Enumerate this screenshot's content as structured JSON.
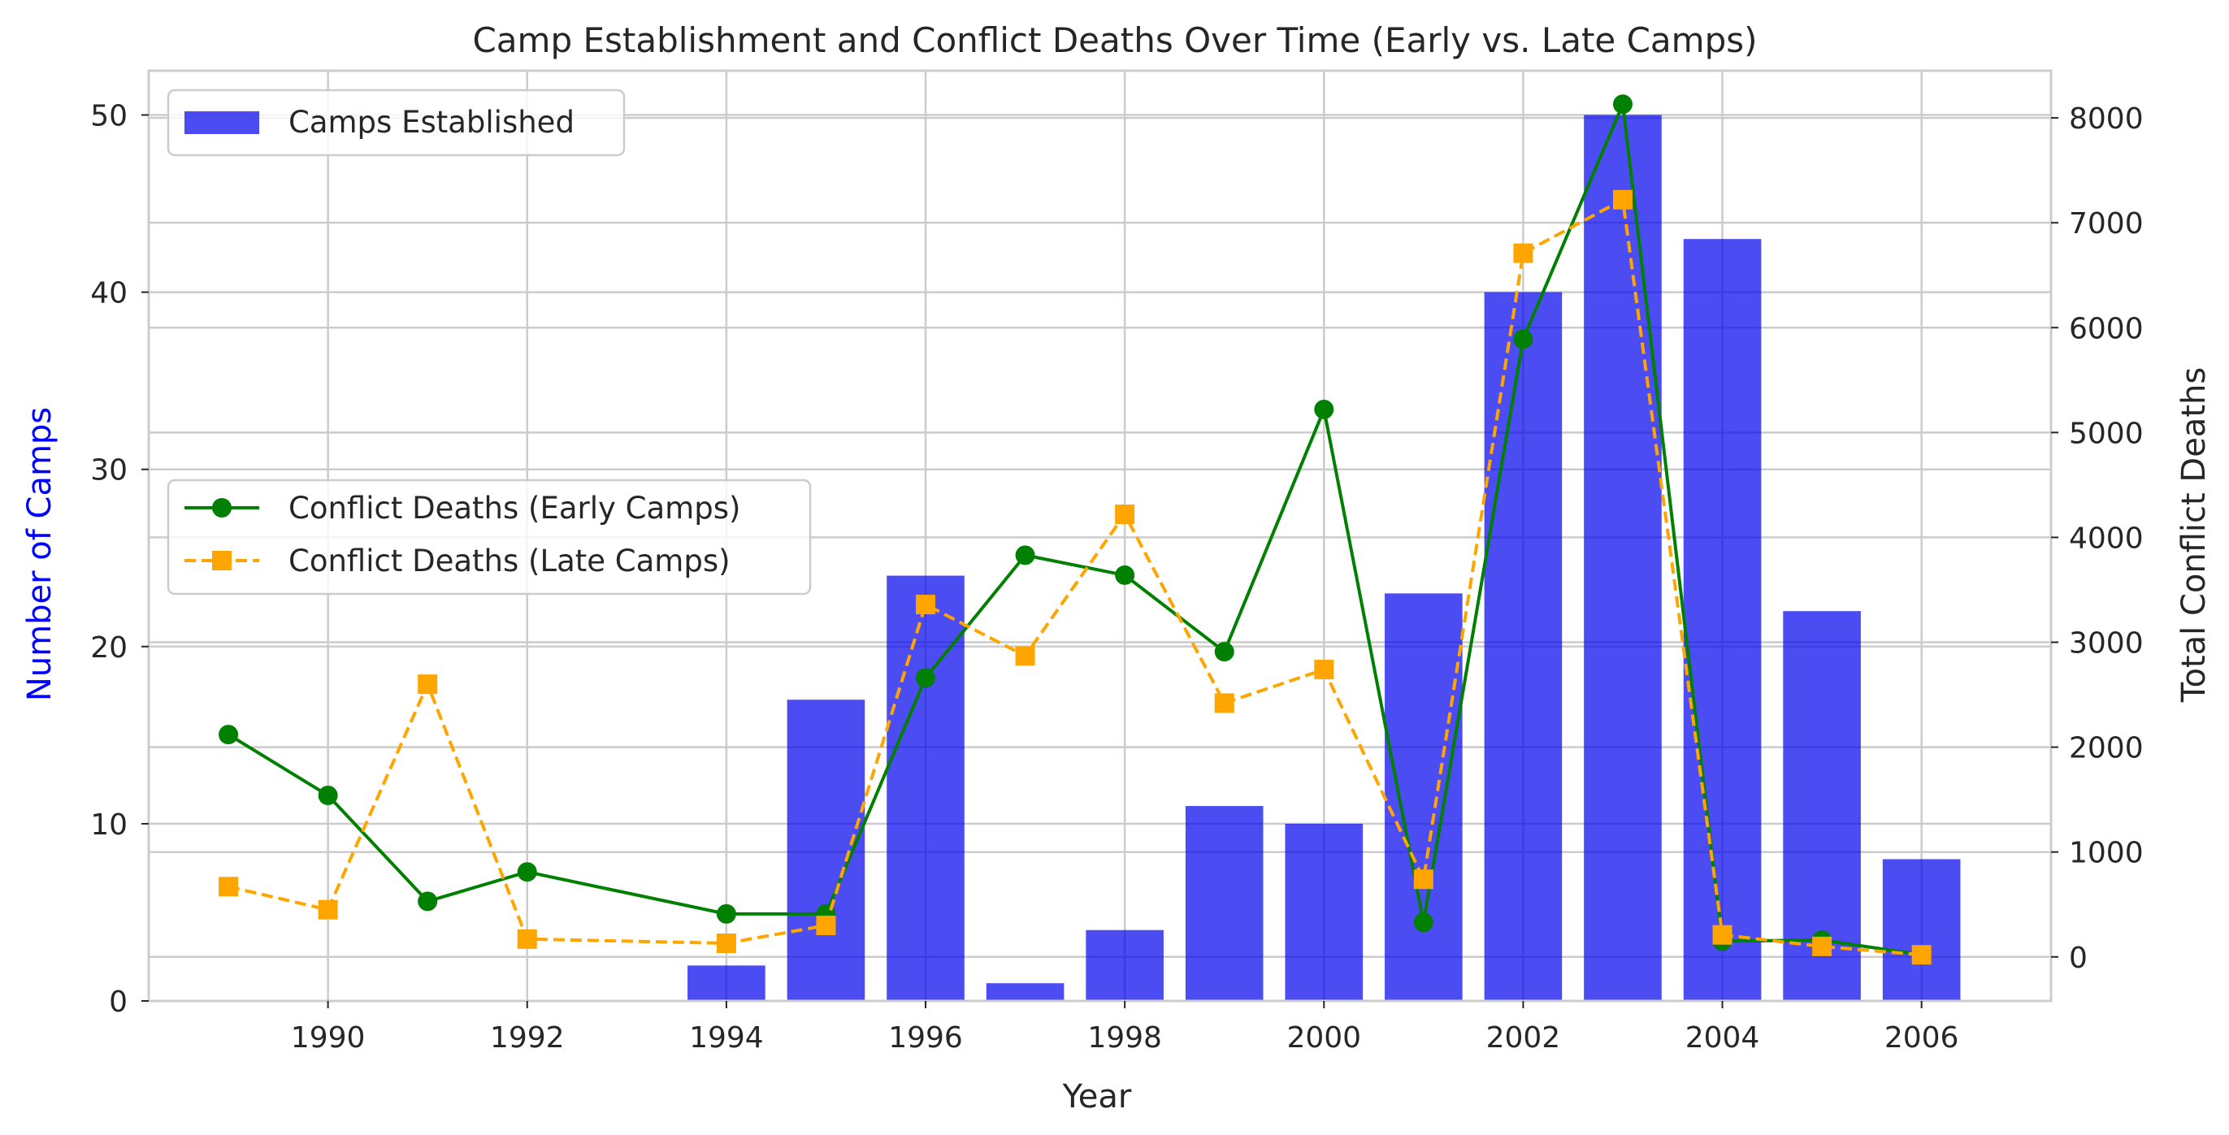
{
  "chart_data": {
    "type": "bar+line",
    "title": "Camp Establishment and Conflict Deaths Over Time (Early vs. Late Camps)",
    "xlabel": "Year",
    "ylabel_left": "Number of Camps",
    "ylabel_right": "Total Conflict Deaths",
    "xlim": [
      1988.2,
      2007.3
    ],
    "ylim_left": [
      0,
      52.5
    ],
    "ylim_right": [
      -420,
      8450
    ],
    "x_ticks": [
      1990,
      1992,
      1994,
      1996,
      1998,
      2000,
      2002,
      2004,
      2006
    ],
    "y_left_ticks": [
      0,
      10,
      20,
      30,
      40,
      50
    ],
    "y_right_ticks": [
      0,
      1000,
      2000,
      3000,
      4000,
      5000,
      6000,
      7000,
      8000
    ],
    "grid": true,
    "bars": {
      "name": "Camps Established",
      "color": "#0000ee",
      "x": [
        1994,
        1995,
        1996,
        1997,
        1998,
        1999,
        2000,
        2001,
        2002,
        2003,
        2004,
        2005,
        2006
      ],
      "values": [
        2,
        17,
        24,
        1,
        4,
        11,
        10,
        23,
        40,
        50,
        43,
        22,
        8
      ]
    },
    "series": [
      {
        "name": "Conflict Deaths (Early Camps)",
        "color": "#008000",
        "marker": "circle",
        "style": "solid",
        "x": [
          1989,
          1990,
          1991,
          1992,
          1994,
          1995,
          1996,
          1997,
          1998,
          1999,
          2000,
          2001,
          2002,
          2003,
          2004,
          2005,
          2006
        ],
        "values": [
          2120,
          1540,
          530,
          810,
          410,
          410,
          2660,
          3830,
          3640,
          2910,
          5220,
          330,
          5890,
          8130,
          150,
          160,
          20
        ]
      },
      {
        "name": "Conflict Deaths (Late Camps)",
        "color": "#ffa500",
        "marker": "square",
        "style": "dashed",
        "x": [
          1989,
          1990,
          1991,
          1992,
          1994,
          1995,
          1996,
          1997,
          1998,
          1999,
          2000,
          2001,
          2002,
          2003,
          2004,
          2005,
          2006
        ],
        "values": [
          670,
          450,
          2600,
          170,
          130,
          300,
          3360,
          2870,
          4220,
          2420,
          2740,
          740,
          6710,
          7220,
          210,
          100,
          20
        ]
      }
    ],
    "legend_upper": {
      "placement": "upper-left",
      "entries": [
        "Camps Established"
      ]
    },
    "legend_lower": {
      "placement": "center-left",
      "entries": [
        "Conflict Deaths (Early Camps)",
        "Conflict Deaths (Late Camps)"
      ]
    }
  }
}
